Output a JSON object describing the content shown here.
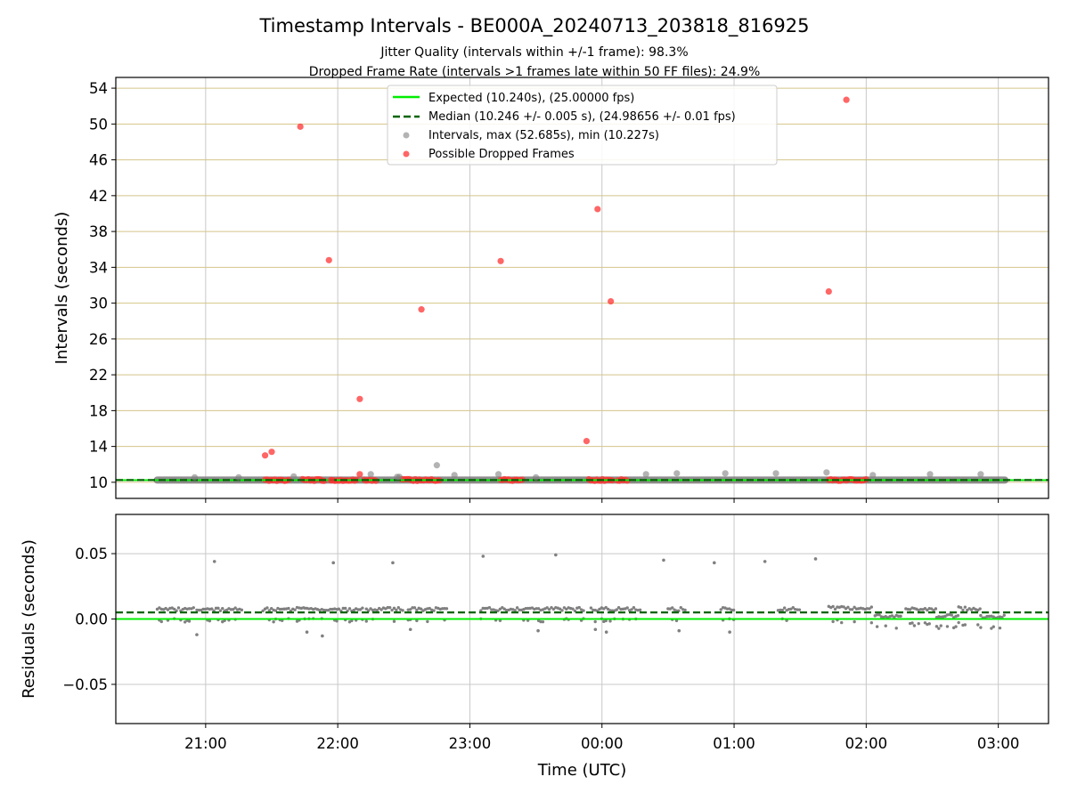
{
  "chart_data": [
    {
      "type": "scatter",
      "title": "Timestamp Intervals - BE000A_20240713_203818_816925",
      "subtitle_lines": [
        "Jitter Quality (intervals within +/-1 frame): 98.3%",
        "Dropped Frame Rate (intervals >1 frames late within 50 FF files): 24.9%"
      ],
      "ylabel": "Intervals (seconds)",
      "ylim": [
        8.2,
        55.2
      ],
      "yticks": [
        10,
        14,
        18,
        22,
        26,
        30,
        34,
        38,
        42,
        46,
        50,
        54
      ],
      "xlim_hours": [
        20.32,
        27.38
      ],
      "grid": true,
      "legend_position": "upper center",
      "colors": {
        "expected": "#00ee00",
        "median": "#006400",
        "intervals": "#808080",
        "dropped": "#ff3333",
        "hgrid": "#d4c48a",
        "vgrid": "#c8c8c8"
      },
      "expected_value": 10.24,
      "median_value": 10.246,
      "series": [
        {
          "name": "Expected (10.240s), (25.00000 fps)",
          "kind": "line",
          "y": 10.24
        },
        {
          "name": "Median (10.246 +/- 0.005 s), (24.98656 +/- 0.01 fps)",
          "kind": "dashed-line",
          "y": 10.246
        },
        {
          "name": "Intervals, max (52.685s), min (10.227s)",
          "kind": "points",
          "x": [
            "20:55",
            "21:15",
            "21:40",
            "22:15",
            "22:27",
            "22:28",
            "22:45",
            "22:53",
            "23:13",
            "23:30",
            "00:20",
            "00:34",
            "00:56",
            "01:19",
            "01:42",
            "02:03",
            "02:29",
            "02:52"
          ],
          "y": [
            10.55,
            10.55,
            10.65,
            10.9,
            10.6,
            10.6,
            11.9,
            10.8,
            10.9,
            10.55,
            10.9,
            11.0,
            11.0,
            11.0,
            11.1,
            10.8,
            10.9,
            10.9
          ]
        },
        {
          "name": "Possible Dropped Frames",
          "kind": "points",
          "x": [
            "21:27",
            "21:30",
            "21:43",
            "21:56",
            "22:10",
            "22:38",
            "23:14",
            "23:53",
            "23:58",
            "00:04",
            "01:43",
            "01:51",
            "22:10",
            "21:57"
          ],
          "y": [
            13.0,
            13.4,
            49.7,
            34.8,
            19.3,
            29.3,
            34.7,
            14.6,
            40.5,
            30.2,
            31.3,
            52.7,
            10.9,
            10.25
          ]
        }
      ],
      "dropped_frame_clusters": [
        [
          "21:27",
          "21:38"
        ],
        [
          "21:44",
          "21:54"
        ],
        [
          "21:57",
          "22:09"
        ],
        [
          "22:12",
          "22:18"
        ],
        [
          "22:29",
          "22:38"
        ],
        [
          "22:39",
          "22:47"
        ],
        [
          "23:14",
          "23:24"
        ],
        [
          "23:54",
          "00:05"
        ],
        [
          "00:07",
          "00:12"
        ],
        [
          "01:43",
          "02:00"
        ]
      ],
      "interval_band": [
        "20:38",
        "03:03"
      ]
    },
    {
      "type": "scatter",
      "title": "",
      "xlabel": "Time (UTC)",
      "ylabel": "Residuals (seconds)",
      "ylim": [
        -0.08,
        0.08
      ],
      "yticks": [
        0.05,
        0.0,
        -0.05
      ],
      "ytick_labels": [
        "0.05",
        "0.00",
        "−0.05"
      ],
      "xticks": [
        "21:00",
        "22:00",
        "23:00",
        "00:00",
        "01:00",
        "02:00",
        "03:00"
      ],
      "grid": true,
      "expected_value": 0.0,
      "median_value": 0.005,
      "outliers": {
        "x": [
          "21:04",
          "21:58",
          "22:25",
          "23:06",
          "23:39",
          "00:28",
          "00:51",
          "01:14",
          "01:37",
          "20:56",
          "21:46",
          "21:53",
          "22:33",
          "23:31",
          "23:57",
          "00:02",
          "00:35",
          "00:58"
        ],
        "y": [
          0.044,
          0.043,
          0.043,
          0.048,
          0.049,
          0.045,
          0.043,
          0.044,
          0.046,
          -0.012,
          -0.01,
          -0.013,
          -0.008,
          -0.009,
          -0.008,
          -0.01,
          -0.009,
          -0.01
        ]
      },
      "segments": [
        {
          "start": "20:38",
          "end": "20:55",
          "upper": 0.0075,
          "lower": -0.001
        },
        {
          "start": "20:56",
          "end": "21:17",
          "upper": 0.0075,
          "lower": -0.001
        },
        {
          "start": "21:26",
          "end": "21:45",
          "upper": 0.0075,
          "lower": -0.001
        },
        {
          "start": "21:45",
          "end": "22:12",
          "upper": 0.0075,
          "lower": -0.001
        },
        {
          "start": "22:13",
          "end": "22:30",
          "upper": 0.0075,
          "lower": -0.001
        },
        {
          "start": "22:32",
          "end": "22:50",
          "upper": 0.0075,
          "lower": -0.001
        },
        {
          "start": "23:05",
          "end": "23:52",
          "upper": 0.0075,
          "lower": -0.001
        },
        {
          "start": "23:55",
          "end": "00:18",
          "upper": 0.0075,
          "lower": -0.001
        },
        {
          "start": "00:30",
          "end": "00:38",
          "upper": 0.0075,
          "lower": -0.001
        },
        {
          "start": "00:54",
          "end": "01:00",
          "upper": 0.0075,
          "lower": -0.001
        },
        {
          "start": "01:20",
          "end": "01:30",
          "upper": 0.0075,
          "lower": -0.001
        },
        {
          "start": "01:43",
          "end": "02:03",
          "upper": 0.0085,
          "lower": -0.002
        },
        {
          "start": "02:04",
          "end": "02:16",
          "upper": 0.002,
          "lower": -0.006
        },
        {
          "start": "02:18",
          "end": "02:32",
          "upper": 0.008,
          "lower": -0.004
        },
        {
          "start": "02:32",
          "end": "02:42",
          "upper": 0.002,
          "lower": -0.006
        },
        {
          "start": "02:42",
          "end": "02:52",
          "upper": 0.008,
          "lower": -0.004
        },
        {
          "start": "02:52",
          "end": "03:03",
          "upper": 0.002,
          "lower": -0.006
        }
      ]
    }
  ]
}
